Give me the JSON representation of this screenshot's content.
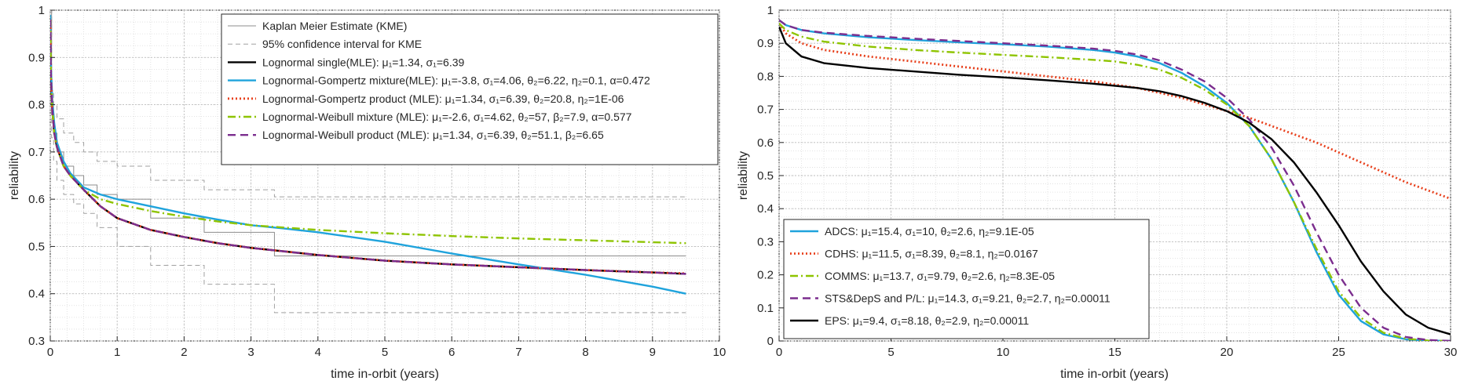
{
  "charts": [
    {
      "type": "line",
      "xlabel": "time in-orbit (years)",
      "ylabel": "reliability",
      "xlim": [
        0,
        10
      ],
      "ylim": [
        0.3,
        1
      ],
      "xticks": [
        0,
        1,
        2,
        3,
        4,
        5,
        6,
        7,
        8,
        9,
        10
      ],
      "yticks": [
        0.3,
        0.4,
        0.5,
        0.6,
        0.7,
        0.8,
        0.9,
        1
      ],
      "xtick_labels": [
        "0",
        "1",
        "2",
        "3",
        "4",
        "5",
        "6",
        "7",
        "8",
        "9",
        "10"
      ],
      "ytick_labels": [
        "0.3",
        "0.4",
        "0.5",
        "0.6",
        "0.7",
        "0.8",
        "0.9",
        "1"
      ],
      "grid": "major and minor, dotted",
      "legend_position": "top-right",
      "series": [
        {
          "name": "Kaplan Meier Estimate (KME)",
          "color": "#8c8c8c",
          "style": "solid-thin",
          "step": true,
          "x": [
            0,
            0.02,
            0.05,
            0.1,
            0.2,
            0.35,
            0.5,
            0.7,
            1.0,
            1.5,
            2.3,
            3.35,
            9.5
          ],
          "y": [
            1,
            0.78,
            0.74,
            0.7,
            0.67,
            0.65,
            0.63,
            0.61,
            0.6,
            0.56,
            0.53,
            0.48,
            0.48
          ]
        },
        {
          "name": "95% confidence interval for KME",
          "color": "#a0a0a0",
          "style": "dashed-thin",
          "step": true,
          "x": [
            0,
            0.02,
            0.05,
            0.1,
            0.2,
            0.35,
            0.5,
            0.7,
            1.0,
            1.5,
            2.3,
            3.35,
            9.5
          ],
          "y": [
            1,
            0.83,
            0.8,
            0.77,
            0.74,
            0.72,
            0.7,
            0.68,
            0.67,
            0.64,
            0.62,
            0.605,
            0.605
          ]
        },
        {
          "name": "",
          "color": "#a0a0a0",
          "style": "dashed-thin",
          "step": true,
          "x": [
            0,
            0.02,
            0.05,
            0.1,
            0.2,
            0.35,
            0.5,
            0.7,
            1.0,
            1.5,
            2.3,
            3.35,
            9.5
          ],
          "y": [
            1,
            0.73,
            0.68,
            0.64,
            0.61,
            0.59,
            0.57,
            0.54,
            0.5,
            0.46,
            0.42,
            0.36,
            0.36
          ]
        },
        {
          "name": "Lognormal single(MLE):",
          "params": "μ₁=1.34, σ₁=6.39",
          "color": "#000000",
          "style": "solid",
          "x": [
            0,
            0.01,
            0.03,
            0.06,
            0.1,
            0.2,
            0.3,
            0.5,
            0.75,
            1.0,
            1.5,
            2,
            2.5,
            3,
            4,
            5,
            6,
            7,
            8,
            9,
            9.5
          ],
          "y": [
            0.98,
            0.86,
            0.79,
            0.74,
            0.71,
            0.67,
            0.65,
            0.62,
            0.585,
            0.56,
            0.535,
            0.52,
            0.507,
            0.497,
            0.482,
            0.47,
            0.462,
            0.456,
            0.45,
            0.445,
            0.442
          ]
        },
        {
          "name": "Lognormal-Gompertz mixture(MLE):",
          "params": "μ₁=-3.8, σ₁=4.06, θ₂=6.22, η₂=0.1, α=0.472",
          "color": "#1fa3dc",
          "style": "solid",
          "x": [
            0,
            0.01,
            0.03,
            0.06,
            0.1,
            0.2,
            0.3,
            0.5,
            0.75,
            1.0,
            1.5,
            2,
            2.5,
            3,
            3.5,
            4,
            5,
            6,
            7,
            8,
            9,
            9.5
          ],
          "y": [
            0.99,
            0.88,
            0.81,
            0.76,
            0.72,
            0.68,
            0.655,
            0.625,
            0.61,
            0.6,
            0.585,
            0.57,
            0.557,
            0.545,
            0.538,
            0.53,
            0.51,
            0.485,
            0.462,
            0.44,
            0.415,
            0.4
          ]
        },
        {
          "name": "Lognormal-Gompertz product (MLE):",
          "params": "μ₁=1.34, σ₁=6.39, θ₂=20.8, η₂=1E-06",
          "color": "#e8401c",
          "style": "dotted",
          "x": [
            0,
            0.01,
            0.03,
            0.06,
            0.1,
            0.2,
            0.3,
            0.5,
            0.75,
            1.0,
            1.5,
            2,
            2.5,
            3,
            4,
            5,
            6,
            7,
            8,
            9,
            9.5
          ],
          "y": [
            0.98,
            0.86,
            0.79,
            0.74,
            0.71,
            0.67,
            0.65,
            0.62,
            0.585,
            0.56,
            0.535,
            0.52,
            0.507,
            0.497,
            0.482,
            0.47,
            0.462,
            0.456,
            0.45,
            0.445,
            0.443
          ]
        },
        {
          "name": "Lognormal-Weibull mixture (MLE):",
          "params": "μ₁=-2.6, σ₁=4.62, θ₂=57, β₂=7.9, α=0.577",
          "color": "#8ec400",
          "style": "dashdot",
          "x": [
            0,
            0.01,
            0.03,
            0.06,
            0.1,
            0.2,
            0.3,
            0.5,
            0.75,
            1.0,
            1.5,
            2,
            2.5,
            3,
            3.5,
            4,
            5,
            6,
            7,
            8,
            9,
            9.5
          ],
          "y": [
            0.98,
            0.86,
            0.79,
            0.74,
            0.71,
            0.67,
            0.65,
            0.62,
            0.6,
            0.59,
            0.575,
            0.563,
            0.553,
            0.545,
            0.54,
            0.535,
            0.528,
            0.522,
            0.517,
            0.513,
            0.509,
            0.507
          ]
        },
        {
          "name": "Lognormal-Weibull product (MLE):",
          "params": "μ₁=1.34, σ₁=6.39, θ₂=51.1, β₂=6.65",
          "color": "#7b2d8e",
          "style": "dashed",
          "x": [
            0,
            0.01,
            0.03,
            0.06,
            0.1,
            0.2,
            0.3,
            0.5,
            0.75,
            1.0,
            1.5,
            2,
            2.5,
            3,
            4,
            5,
            6,
            7,
            8,
            9,
            9.5
          ],
          "y": [
            0.98,
            0.86,
            0.79,
            0.74,
            0.71,
            0.67,
            0.65,
            0.62,
            0.585,
            0.56,
            0.535,
            0.52,
            0.507,
            0.497,
            0.482,
            0.47,
            0.462,
            0.456,
            0.45,
            0.445,
            0.442
          ]
        }
      ]
    },
    {
      "type": "line",
      "xlabel": "time in-orbit (years)",
      "ylabel": "reliability",
      "xlim": [
        0,
        30
      ],
      "ylim": [
        0,
        1
      ],
      "xticks": [
        0,
        5,
        10,
        15,
        20,
        25,
        30
      ],
      "yticks": [
        0,
        0.1,
        0.2,
        0.3,
        0.4,
        0.5,
        0.6,
        0.7,
        0.8,
        0.9,
        1
      ],
      "xtick_labels": [
        "0",
        "5",
        "10",
        "15",
        "20",
        "25",
        "30"
      ],
      "ytick_labels": [
        "0",
        "0.1",
        "0.2",
        "0.3",
        "0.4",
        "0.5",
        "0.6",
        "0.7",
        "0.8",
        "0.9",
        "1"
      ],
      "grid": "major and minor, dotted",
      "legend_position": "bottom-left",
      "series": [
        {
          "name": "ADCS:",
          "params": "μ₁=15.4, σ₁=10, θ₂=2.6, η₂=9.1E-05",
          "color": "#1fa3dc",
          "style": "solid",
          "x": [
            0,
            0.3,
            1,
            2,
            4,
            6,
            8,
            10,
            12,
            14,
            15,
            16,
            17,
            18,
            19,
            20,
            21,
            22,
            23,
            24,
            25,
            26,
            27,
            28,
            29,
            30
          ],
          "y": [
            0.97,
            0.955,
            0.94,
            0.93,
            0.918,
            0.91,
            0.903,
            0.897,
            0.89,
            0.88,
            0.872,
            0.86,
            0.84,
            0.81,
            0.77,
            0.72,
            0.65,
            0.55,
            0.42,
            0.27,
            0.14,
            0.06,
            0.02,
            0.005,
            0.001,
            0
          ]
        },
        {
          "name": "CDHS:",
          "params": "μ₁=11.5, σ₁=8.39, θ₂=8.1, η₂=0.0167",
          "color": "#e8401c",
          "style": "dotted",
          "x": [
            0,
            0.3,
            1,
            2,
            4,
            6,
            8,
            10,
            12,
            14,
            16,
            18,
            20,
            21,
            22,
            24,
            26,
            28,
            30
          ],
          "y": [
            0.96,
            0.93,
            0.9,
            0.88,
            0.86,
            0.845,
            0.83,
            0.815,
            0.8,
            0.785,
            0.765,
            0.735,
            0.695,
            0.675,
            0.65,
            0.6,
            0.54,
            0.48,
            0.43
          ]
        },
        {
          "name": "COMMS:",
          "params": "μ₁=13.7, σ₁=9.79, θ₂=2.6, η₂=8.3E-05",
          "color": "#8ec400",
          "style": "dashdot",
          "x": [
            0,
            0.3,
            1,
            2,
            4,
            6,
            8,
            10,
            12,
            14,
            15,
            16,
            17,
            18,
            19,
            20,
            21,
            22,
            23,
            24,
            25,
            26,
            27,
            28,
            29,
            30
          ],
          "y": [
            0.96,
            0.94,
            0.92,
            0.905,
            0.89,
            0.88,
            0.872,
            0.865,
            0.858,
            0.85,
            0.845,
            0.835,
            0.82,
            0.795,
            0.76,
            0.715,
            0.65,
            0.55,
            0.42,
            0.28,
            0.15,
            0.07,
            0.025,
            0.007,
            0.001,
            0
          ]
        },
        {
          "name": "STS&DepS and P/L:",
          "params": "μ₁=14.3, σ₁=9.21, θ₂=2.7, η₂=0.00011",
          "color": "#7b2d8e",
          "style": "dashed",
          "x": [
            0,
            0.3,
            1,
            2,
            4,
            6,
            8,
            10,
            12,
            14,
            15,
            16,
            17,
            18,
            19,
            20,
            21,
            22,
            23,
            24,
            25,
            26,
            27,
            28,
            29,
            30
          ],
          "y": [
            0.97,
            0.955,
            0.94,
            0.932,
            0.922,
            0.914,
            0.907,
            0.9,
            0.893,
            0.884,
            0.877,
            0.866,
            0.848,
            0.82,
            0.785,
            0.735,
            0.67,
            0.585,
            0.47,
            0.33,
            0.2,
            0.1,
            0.04,
            0.012,
            0.003,
            0
          ]
        },
        {
          "name": "EPS:",
          "params": "μ₁=9.4, σ₁=8.18, θ₂=2.9, η₂=0.00011",
          "color": "#000000",
          "style": "solid",
          "x": [
            0,
            0.3,
            1,
            2,
            4,
            6,
            8,
            10,
            12,
            14,
            16,
            17,
            18,
            19,
            20,
            21,
            22,
            23,
            24,
            25,
            26,
            27,
            28,
            29,
            30
          ],
          "y": [
            0.95,
            0.9,
            0.86,
            0.84,
            0.825,
            0.815,
            0.805,
            0.797,
            0.788,
            0.778,
            0.765,
            0.755,
            0.74,
            0.72,
            0.695,
            0.66,
            0.61,
            0.54,
            0.45,
            0.35,
            0.24,
            0.15,
            0.08,
            0.04,
            0.02
          ]
        }
      ]
    }
  ]
}
